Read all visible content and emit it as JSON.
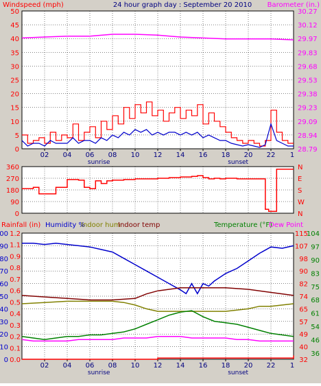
{
  "title": "24 hour graph day : September 20 2010",
  "colors": {
    "red": "#ff0000",
    "blue": "#0000cc",
    "magenta": "#ff00ff",
    "olive": "#808000",
    "maroon": "#800000",
    "green": "#008000",
    "black": "#000000"
  },
  "chart_data": [
    {
      "type": "line",
      "left_label": "Windspeed (mph)",
      "right_label": "Barometer (in.)",
      "left_ticks": [
        0,
        5,
        10,
        15,
        20,
        25,
        30,
        35,
        40,
        45,
        50
      ],
      "left_ylim": [
        0,
        50
      ],
      "right_ticks": [
        "28.79",
        "28.94",
        "29.09",
        "29.23",
        "29.38",
        "29.53",
        "29.68",
        "29.83",
        "29.97",
        "30.12",
        "30.27"
      ],
      "right_ylim": [
        28.79,
        30.27
      ],
      "x_ticks": [
        "02",
        "04",
        "06",
        "08",
        "10",
        "12",
        "14",
        "16",
        "18",
        "20",
        "22"
      ],
      "x_annotations": [
        {
          "label": "sunrise",
          "hour": 6.8
        },
        {
          "label": "sunset",
          "hour": 19.1
        }
      ],
      "series": [
        {
          "color": "#ff0000",
          "axis": "left",
          "step": true,
          "x": [
            0,
            0.5,
            1,
            1.5,
            2,
            2.5,
            3,
            3.5,
            4,
            4.5,
            5,
            5.5,
            6,
            6.5,
            7,
            7.5,
            8,
            8.5,
            9,
            9.5,
            10,
            10.5,
            11,
            11.5,
            12,
            12.5,
            13,
            13.5,
            14,
            14.5,
            15,
            15.5,
            16,
            16.5,
            17,
            17.5,
            18,
            18.5,
            19,
            19.5,
            20,
            20.5,
            21,
            21.5,
            22,
            22.5,
            23,
            23.5,
            24
          ],
          "y": [
            5,
            2,
            3,
            4,
            2,
            6,
            3,
            5,
            4,
            9,
            3,
            6,
            8,
            4,
            10,
            7,
            12,
            9,
            15,
            11,
            16,
            13,
            17,
            12,
            14,
            10,
            13,
            15,
            11,
            14,
            12,
            16,
            9,
            13,
            10,
            8,
            6,
            4,
            3,
            2,
            3,
            2,
            1,
            3,
            14,
            6,
            3,
            2,
            2
          ]
        },
        {
          "color": "#0000cc",
          "axis": "left",
          "step": false,
          "x": [
            0,
            0.5,
            1,
            1.5,
            2,
            2.5,
            3,
            3.5,
            4,
            4.5,
            5,
            5.5,
            6,
            6.5,
            7,
            7.5,
            8,
            8.5,
            9,
            9.5,
            10,
            10.5,
            11,
            11.5,
            12,
            12.5,
            13,
            13.5,
            14,
            14.5,
            15,
            15.5,
            16,
            16.5,
            17,
            17.5,
            18,
            18.5,
            19,
            19.5,
            20,
            20.5,
            21,
            21.5,
            22,
            22.5,
            23,
            23.5,
            24
          ],
          "y": [
            3,
            1,
            2,
            2,
            1,
            3,
            2,
            2,
            2,
            4,
            2,
            3,
            3,
            2,
            4,
            3,
            5,
            4,
            6,
            5,
            7,
            6,
            7,
            5,
            6,
            5,
            6,
            6,
            5,
            6,
            5,
            6,
            4,
            5,
            4,
            3,
            3,
            2,
            1.5,
            1,
            1.5,
            1,
            0.5,
            1.5,
            9,
            3,
            2,
            1,
            1
          ]
        },
        {
          "color": "#ff00ff",
          "axis": "right",
          "step": false,
          "x": [
            0,
            2,
            4,
            6,
            8,
            10,
            12,
            14,
            16,
            18,
            20,
            22,
            24
          ],
          "y": [
            29.98,
            29.99,
            30.0,
            30.0,
            30.02,
            30.02,
            30.01,
            29.99,
            29.98,
            29.97,
            29.97,
            29.97,
            29.96
          ]
        }
      ]
    },
    {
      "type": "line",
      "left_ticks": [
        0,
        90,
        180,
        270,
        360
      ],
      "left_ylim": [
        0,
        360
      ],
      "right_ticks": [
        "N",
        "W",
        "S",
        "E",
        "N"
      ],
      "series": [
        {
          "color": "#ff0000",
          "axis": "left",
          "step": true,
          "x": [
            0,
            1,
            1.5,
            2.5,
            3,
            3.5,
            4,
            5,
            5.5,
            6,
            6.5,
            7,
            7.5,
            8,
            9,
            10,
            11,
            12,
            13,
            14,
            15,
            15.5,
            16,
            16.5,
            17,
            17.5,
            18,
            19,
            20,
            21,
            21.5,
            21.8,
            22.2,
            22.5,
            24
          ],
          "y": [
            190,
            200,
            150,
            150,
            200,
            200,
            260,
            255,
            200,
            190,
            250,
            230,
            250,
            255,
            260,
            265,
            265,
            270,
            275,
            280,
            285,
            290,
            275,
            265,
            270,
            265,
            270,
            265,
            265,
            265,
            30,
            15,
            15,
            340,
            340
          ]
        }
      ]
    },
    {
      "type": "line",
      "left_label_rain": "Rainfall (in)",
      "left_label_humidity": "Humidity %",
      "left_label_indoor_hum": "Indoor hum",
      "left_label_indoor_temp": "Indoor temp",
      "right_label_temp": "Temperature (°F)",
      "right_label_dew": "Dew Point",
      "humidity_ticks": [
        0,
        10,
        20,
        30,
        40,
        50,
        60,
        70,
        80,
        90,
        100
      ],
      "rain_ticks": [
        "0.0",
        "0.1",
        "0.2",
        "0.3",
        "0.4",
        "0.5",
        "0.6",
        "0.7",
        "0.8",
        "0.9",
        "1.1",
        "1.2"
      ],
      "temp_ticks_a": [
        32,
        40,
        49,
        57,
        65,
        74,
        82,
        90,
        98,
        107,
        115
      ],
      "temp_ticks_b": [
        36,
        46,
        54,
        61,
        68,
        75,
        83,
        90,
        97,
        104
      ],
      "temp_ylim": [
        32,
        115
      ],
      "series": [
        {
          "name": "Humidity %",
          "color": "#0000cc",
          "axis": "humidity",
          "x": [
            0,
            1,
            2,
            3,
            4,
            5,
            6,
            7,
            8,
            9,
            10,
            11,
            12,
            13,
            14,
            14.5,
            15,
            15.5,
            16,
            16.5,
            17,
            18,
            19,
            20,
            21,
            22,
            23,
            24
          ],
          "y": [
            92,
            92,
            91,
            92,
            91,
            90,
            89,
            87,
            85,
            80,
            75,
            70,
            65,
            60,
            55,
            52,
            60,
            52,
            60,
            58,
            62,
            68,
            72,
            78,
            84,
            89,
            88,
            90
          ]
        },
        {
          "name": "Indoor temp",
          "color": "#800000",
          "axis": "temp",
          "x": [
            0,
            2,
            4,
            6,
            8,
            10,
            11,
            12,
            13,
            14,
            16,
            18,
            20,
            22,
            24
          ],
          "y": [
            74,
            73,
            72,
            71,
            71,
            72,
            75,
            77,
            78,
            79,
            79,
            79,
            78,
            76,
            74
          ]
        },
        {
          "name": "Indoor hum",
          "color": "#808000",
          "axis": "humidity",
          "x": [
            0,
            2,
            4,
            6,
            7,
            8,
            9,
            10,
            11,
            12,
            13,
            14,
            15,
            16,
            17,
            18,
            19,
            20,
            21,
            22,
            23,
            24
          ],
          "y": [
            44,
            45,
            46,
            46,
            46,
            46,
            45,
            43,
            40,
            38,
            38,
            38,
            38,
            38,
            38,
            38,
            39,
            40,
            42,
            42,
            43,
            44
          ]
        },
        {
          "name": "Temperature (°F)",
          "color": "#008000",
          "axis": "temp",
          "x": [
            0,
            1,
            2,
            3,
            4,
            5,
            6,
            7,
            8,
            9,
            10,
            11,
            12,
            13,
            14,
            15,
            16,
            17,
            18,
            19,
            20,
            21,
            22,
            23,
            24
          ],
          "y": [
            47,
            46,
            45,
            46,
            47,
            47,
            48,
            48,
            49,
            50,
            52,
            55,
            58,
            61,
            63,
            64,
            60,
            57,
            56,
            55,
            53,
            51,
            49,
            48,
            47
          ]
        },
        {
          "name": "Dew Point",
          "color": "#ff00ff",
          "axis": "temp",
          "x": [
            0,
            1,
            2,
            3,
            4,
            5,
            6,
            7,
            8,
            9,
            10,
            11,
            12,
            13,
            14,
            15,
            16,
            17,
            18,
            19,
            20,
            21,
            22,
            23,
            24
          ],
          "y": [
            45,
            44,
            44,
            44,
            44,
            45,
            45,
            45,
            45,
            46,
            46,
            46,
            47,
            47,
            47,
            46,
            46,
            46,
            46,
            45,
            45,
            44,
            44,
            44,
            44
          ]
        },
        {
          "name": "Rainfall (in)",
          "color": "#ff0000",
          "axis": "humidity",
          "step": true,
          "x": [
            0,
            12,
            21.5,
            24
          ],
          "y": [
            0,
            1,
            1,
            3
          ]
        }
      ]
    }
  ]
}
